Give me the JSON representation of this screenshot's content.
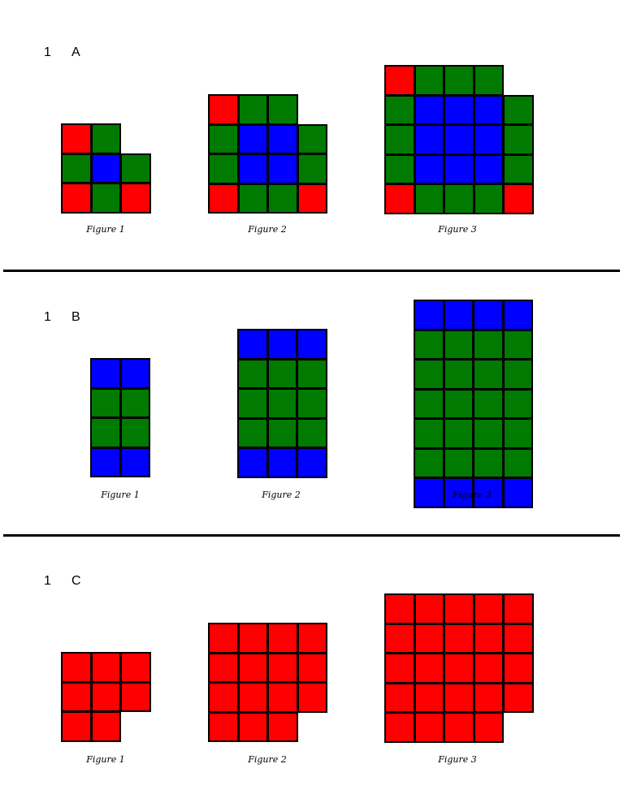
{
  "colors": {
    "R": "#ff0000",
    "G": "#007a00",
    "B": "#0000ff"
  },
  "sections": [
    {
      "number": "1",
      "letter": "A",
      "figures": [
        {
          "caption": "Figure 1",
          "grid": [
            "RG.",
            "GBG",
            "RGR"
          ]
        },
        {
          "caption": "Figure 2",
          "grid": [
            "RGG.",
            "GBBG",
            "GBBG",
            "RGGR"
          ]
        },
        {
          "caption": "Figure 3",
          "grid": [
            "RGGG.",
            "GBBBG",
            "GBBBG",
            "GBBBG",
            "RGGGR"
          ]
        }
      ]
    },
    {
      "number": "1",
      "letter": "B",
      "figures": [
        {
          "caption": "Figure 1",
          "grid": [
            "BB",
            "GG",
            "GG",
            "BB"
          ]
        },
        {
          "caption": "Figure 2",
          "grid": [
            "BBB",
            "GGG",
            "GGG",
            "GGG",
            "BBB"
          ]
        },
        {
          "caption": "Figure 3",
          "grid": [
            "BBBB",
            "GGGG",
            "GGGG",
            "GGGG",
            "GGGG",
            "GGGG",
            "BBBB"
          ]
        }
      ]
    },
    {
      "number": "1",
      "letter": "C",
      "figures": [
        {
          "caption": "Figure 1",
          "grid": [
            "RRR",
            "RRR",
            "RR."
          ]
        },
        {
          "caption": "Figure 2",
          "grid": [
            "RRRR",
            "RRRR",
            "RRRR",
            "RRR."
          ]
        },
        {
          "caption": "Figure 3",
          "grid": [
            "RRRRR",
            "RRRRR",
            "RRRRR",
            "RRRRR",
            "RRRR."
          ]
        }
      ]
    }
  ]
}
